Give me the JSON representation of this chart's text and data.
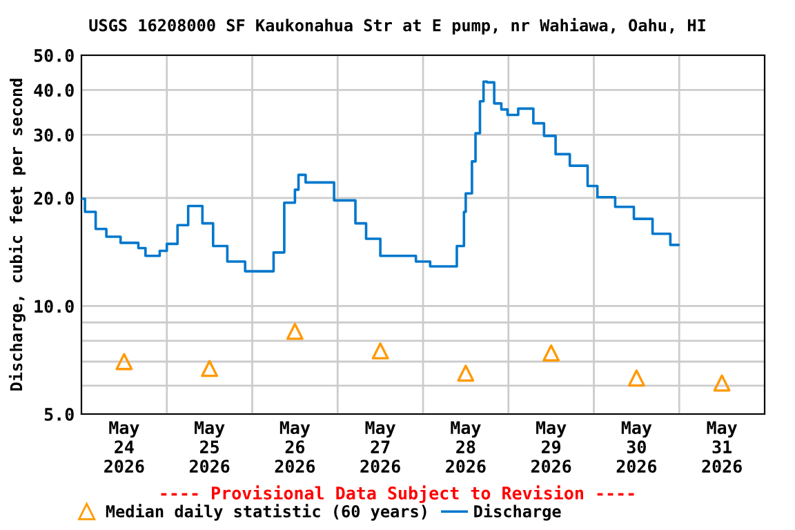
{
  "chart_data": {
    "type": "step",
    "title": "USGS 16208000 SF Kaukonahua Str at E pump, nr Wahiawa, Oahu, HI",
    "ylabel": "Discharge, cubic feet per second",
    "annotations": [
      "---- Provisional Data Subject to Revision ----"
    ],
    "log": "y",
    "grid": true,
    "legend": "bottom",
    "ylim": [
      5,
      50
    ],
    "yticks": [
      {
        "value": 5,
        "label": "5.0"
      },
      {
        "value": 6,
        "label": null
      },
      {
        "value": 7,
        "label": null
      },
      {
        "value": 8,
        "label": null
      },
      {
        "value": 9,
        "label": null
      },
      {
        "value": 10,
        "label": "10.0"
      },
      {
        "value": 20,
        "label": "20.0"
      },
      {
        "value": 30,
        "label": "30.0"
      },
      {
        "value": 40,
        "label": "40.0"
      },
      {
        "value": 50,
        "label": "50.0"
      }
    ],
    "xlim": [
      "2026-05-24T00:00",
      "2026-06-01T00:00"
    ],
    "xticks": [
      {
        "value": "2026-05-24T12:00",
        "label": "May\n24\n2026"
      },
      {
        "value": "2026-05-25T12:00",
        "label": "May\n25\n2026"
      },
      {
        "value": "2026-05-26T12:00",
        "label": "May\n26\n2026"
      },
      {
        "value": "2026-05-27T12:00",
        "label": "May\n27\n2026"
      },
      {
        "value": "2026-05-28T12:00",
        "label": "May\n28\n2026"
      },
      {
        "value": "2026-05-29T12:00",
        "label": "May\n29\n2026"
      },
      {
        "value": "2026-05-30T12:00",
        "label": "May\n30\n2026"
      },
      {
        "value": "2026-05-31T12:00",
        "label": "May\n31\n2026"
      },
      {
        "value": "2026-05-25T00:00",
        "label": null
      },
      {
        "value": "2026-05-26T00:00",
        "label": null
      },
      {
        "value": "2026-05-27T00:00",
        "label": null
      },
      {
        "value": "2026-05-28T00:00",
        "label": null
      },
      {
        "value": "2026-05-29T00:00",
        "label": null
      },
      {
        "value": "2026-05-30T00:00",
        "label": null
      },
      {
        "value": "2026-05-31T00:00",
        "label": null
      }
    ],
    "series": [
      {
        "name": "Median daily statistic (60 years)",
        "type": "scatter",
        "marker": "triangle",
        "color": "#ff9900",
        "x": [
          "2026-05-24T12:00",
          "2026-05-25T12:00",
          "2026-05-26T12:00",
          "2026-05-27T12:00",
          "2026-05-28T12:00",
          "2026-05-29T12:00",
          "2026-05-30T12:00",
          "2026-05-31T12:00"
        ],
        "values": [
          7.0,
          6.7,
          8.5,
          7.5,
          6.5,
          7.4,
          6.3,
          6.1
        ]
      },
      {
        "name": "Discharge",
        "color": "#0077cc",
        "x": [
          "2026-05-24T00:00",
          "2026-05-24T01:00",
          "2026-05-24T04:00",
          "2026-05-24T07:00",
          "2026-05-24T11:00",
          "2026-05-24T16:00",
          "2026-05-24T18:00",
          "2026-05-24T22:00",
          "2026-05-25T00:00",
          "2026-05-25T03:00",
          "2026-05-25T06:00",
          "2026-05-25T07:00",
          "2026-05-25T10:00",
          "2026-05-25T13:00",
          "2026-05-25T17:00",
          "2026-05-25T22:00",
          "2026-05-26T04:00",
          "2026-05-26T06:00",
          "2026-05-26T09:00",
          "2026-05-26T12:00",
          "2026-05-26T13:00",
          "2026-05-26T15:00",
          "2026-05-26T21:00",
          "2026-05-26T23:00",
          "2026-05-27T02:00",
          "2026-05-27T05:00",
          "2026-05-27T08:00",
          "2026-05-27T12:00",
          "2026-05-27T20:00",
          "2026-05-27T22:00",
          "2026-05-28T02:00",
          "2026-05-28T07:00",
          "2026-05-28T09:30",
          "2026-05-28T11:30",
          "2026-05-28T12:00",
          "2026-05-28T13:45",
          "2026-05-28T14:45",
          "2026-05-28T16:00",
          "2026-05-28T17:00",
          "2026-05-28T18:00",
          "2026-05-28T20:00",
          "2026-05-28T22:00",
          "2026-05-28T23:45",
          "2026-05-29T01:45",
          "2026-05-29T02:45",
          "2026-05-29T04:00",
          "2026-05-29T07:00",
          "2026-05-29T10:00",
          "2026-05-29T13:15",
          "2026-05-29T17:15",
          "2026-05-29T22:15",
          "2026-05-30T01:00",
          "2026-05-30T06:00",
          "2026-05-30T11:15",
          "2026-05-30T16:30",
          "2026-05-30T21:30",
          "2026-05-30T23:45"
        ],
        "values": [
          19.9,
          18.3,
          16.4,
          15.6,
          15.0,
          14.5,
          13.8,
          14.25,
          14.9,
          16.8,
          19.0,
          19.0,
          17.0,
          14.7,
          13.3,
          12.5,
          12.5,
          14.1,
          19.4,
          21.1,
          23.2,
          22.1,
          22.1,
          19.7,
          19.7,
          17.0,
          15.4,
          13.8,
          13.8,
          13.3,
          12.9,
          12.9,
          14.7,
          18.3,
          20.6,
          25.3,
          30.3,
          37.2,
          42.2,
          42,
          36.7,
          35.3,
          34.1,
          34.1,
          35.5,
          35.5,
          32.3,
          29.8,
          26.5,
          24.6,
          21.6,
          20.1,
          18.9,
          17.5,
          15.9,
          14.8,
          14.8
        ]
      }
    ]
  }
}
